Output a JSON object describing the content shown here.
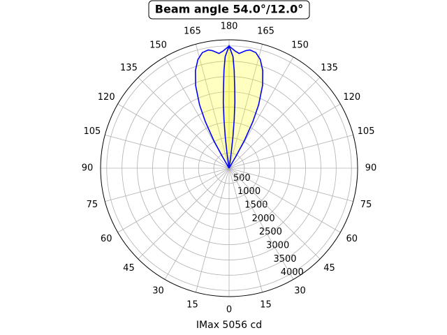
{
  "chart_data": {
    "type": "polar",
    "title": "Beam angle 54.0°/12.0°",
    "xlabel": "IMax 5056 cd",
    "theta_unit": "deg",
    "ylim": [
      0,
      4200
    ],
    "yticks": [
      500,
      1000,
      1500,
      2000,
      2500,
      3000,
      3500,
      4000
    ],
    "xticks": [
      0,
      15,
      30,
      45,
      60,
      75,
      90,
      105,
      120,
      135,
      150,
      165,
      180,
      {
        "value": 195,
        "label": "165"
      },
      {
        "value": 210,
        "label": "150"
      },
      {
        "value": 225,
        "label": "135"
      },
      {
        "value": 240,
        "label": "120"
      },
      {
        "value": 255,
        "label": "105"
      },
      {
        "value": 270,
        "label": "90"
      },
      {
        "value": 285,
        "label": "75"
      },
      {
        "value": 300,
        "label": "60"
      },
      {
        "value": 315,
        "label": "45"
      },
      {
        "value": 330,
        "label": "30"
      },
      {
        "value": 345,
        "label": "15"
      }
    ],
    "grid": true,
    "fill_color": "#ffff00",
    "series": [
      {
        "color": "#0000ff",
        "x": [
          149,
          150,
          151,
          153,
          155,
          158,
          161,
          164,
          167,
          170,
          172,
          175,
          177,
          180,
          183,
          185,
          188,
          190,
          193,
          196,
          199,
          202,
          205,
          207,
          209,
          210,
          211
        ],
        "values": [
          0,
          457,
          1027,
          1712,
          2283,
          2922,
          3379,
          3698,
          3881,
          3926,
          3881,
          3767,
          3835,
          3995,
          3835,
          3767,
          3881,
          3926,
          3881,
          3698,
          3379,
          2922,
          2283,
          1712,
          1027,
          457,
          0
        ]
      },
      {
        "color": "#0000ff",
        "x": [
          171,
          172,
          173,
          174,
          175,
          176,
          177,
          178,
          180,
          182,
          183,
          184,
          185,
          186,
          187,
          188,
          189
        ],
        "values": [
          0,
          457,
          1027,
          1598,
          2169,
          2626,
          3196,
          3653,
          3995,
          3653,
          3196,
          2626,
          2169,
          1598,
          1027,
          457,
          0
        ]
      }
    ]
  }
}
